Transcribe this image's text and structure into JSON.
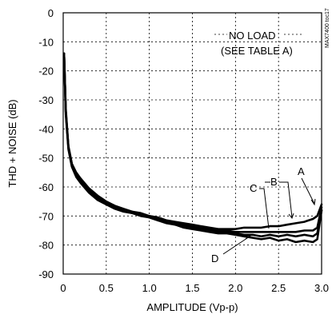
{
  "chart_data": {
    "type": "line",
    "title": "",
    "xlabel": "AMPLITUDE (Vp-p)",
    "ylabel": "THD + NOISE (dB)",
    "xlim": [
      0,
      3.0
    ],
    "ylim": [
      -90,
      0
    ],
    "xticks": [
      "0",
      "0.5",
      "1.0",
      "1.5",
      "2.0",
      "2.5",
      "3.0"
    ],
    "yticks": [
      "0",
      "-10",
      "-20",
      "-30",
      "-40",
      "-50",
      "-60",
      "-70",
      "-80",
      "-90"
    ],
    "grid": true,
    "annotations": {
      "condition_line1": "NO LOAD",
      "condition_line2": "(SEE TABLE A)",
      "part_id": "MAX7400 toc17"
    },
    "series": [
      {
        "name": "A",
        "x": [
          0.01,
          0.03,
          0.06,
          0.1,
          0.15,
          0.2,
          0.3,
          0.4,
          0.5,
          0.6,
          0.7,
          0.8,
          0.9,
          1.0,
          1.1,
          1.2,
          1.3,
          1.4,
          1.5,
          1.6,
          1.7,
          1.8,
          1.9,
          2.0,
          2.1,
          2.2,
          2.3,
          2.4,
          2.5,
          2.6,
          2.7,
          2.8,
          2.9,
          2.95,
          3.0
        ],
        "y": [
          -14,
          -33,
          -46,
          -52,
          -55,
          -57,
          -60.5,
          -63,
          -65,
          -66.5,
          -67.5,
          -68.5,
          -69,
          -70,
          -70.5,
          -71.5,
          -72,
          -72.5,
          -73,
          -73.5,
          -74,
          -74.5,
          -74.5,
          -74.5,
          -74,
          -74,
          -74,
          -73.5,
          -73.5,
          -73,
          -72.5,
          -72,
          -71,
          -70,
          -66
        ]
      },
      {
        "name": "B",
        "x": [
          0.01,
          0.03,
          0.06,
          0.1,
          0.15,
          0.2,
          0.3,
          0.4,
          0.5,
          0.6,
          0.7,
          0.8,
          0.9,
          1.0,
          1.1,
          1.2,
          1.3,
          1.4,
          1.5,
          1.6,
          1.7,
          1.8,
          1.9,
          2.0,
          2.1,
          2.2,
          2.3,
          2.4,
          2.5,
          2.6,
          2.7,
          2.8,
          2.9,
          2.95,
          3.0
        ],
        "y": [
          -14,
          -34,
          -46,
          -52,
          -55.5,
          -57.5,
          -61,
          -63.5,
          -65.5,
          -67,
          -68,
          -68.5,
          -69.5,
          -70.5,
          -71,
          -72,
          -72.5,
          -73,
          -73.5,
          -74,
          -74.5,
          -75,
          -75,
          -75.5,
          -75.5,
          -75.5,
          -75.5,
          -75.5,
          -75.5,
          -75.5,
          -75.5,
          -75,
          -75,
          -74,
          -67
        ]
      },
      {
        "name": "C",
        "x": [
          0.01,
          0.03,
          0.06,
          0.1,
          0.15,
          0.2,
          0.3,
          0.4,
          0.5,
          0.6,
          0.7,
          0.8,
          0.9,
          1.0,
          1.1,
          1.2,
          1.3,
          1.4,
          1.5,
          1.6,
          1.7,
          1.8,
          1.9,
          2.0,
          2.1,
          2.2,
          2.3,
          2.4,
          2.5,
          2.6,
          2.7,
          2.8,
          2.9,
          2.95,
          3.0
        ],
        "y": [
          -14,
          -34,
          -46.5,
          -52.5,
          -56,
          -58,
          -61.5,
          -64,
          -66,
          -67,
          -68,
          -69,
          -69.5,
          -70.5,
          -71.5,
          -72,
          -73,
          -73.5,
          -74,
          -74.5,
          -75,
          -75.5,
          -75.5,
          -76,
          -76.5,
          -76.5,
          -77,
          -76.5,
          -77,
          -76.5,
          -77,
          -76.5,
          -77,
          -76,
          -68
        ]
      },
      {
        "name": "D",
        "x": [
          0.01,
          0.03,
          0.06,
          0.1,
          0.15,
          0.2,
          0.3,
          0.4,
          0.5,
          0.6,
          0.7,
          0.8,
          0.9,
          1.0,
          1.1,
          1.2,
          1.3,
          1.4,
          1.5,
          1.6,
          1.7,
          1.8,
          1.9,
          2.0,
          2.1,
          2.2,
          2.3,
          2.4,
          2.5,
          2.6,
          2.7,
          2.8,
          2.9,
          2.95,
          3.0
        ],
        "y": [
          -14,
          -35,
          -47,
          -53,
          -56.5,
          -58.5,
          -62,
          -64.5,
          -66,
          -67.5,
          -68.5,
          -69,
          -70,
          -70.5,
          -71.5,
          -72.5,
          -73,
          -74,
          -74.5,
          -75,
          -75.5,
          -76,
          -76,
          -76.5,
          -77,
          -77.5,
          -78,
          -77.5,
          -78.5,
          -78,
          -79,
          -78.5,
          -79,
          -78,
          -68
        ]
      }
    ]
  }
}
